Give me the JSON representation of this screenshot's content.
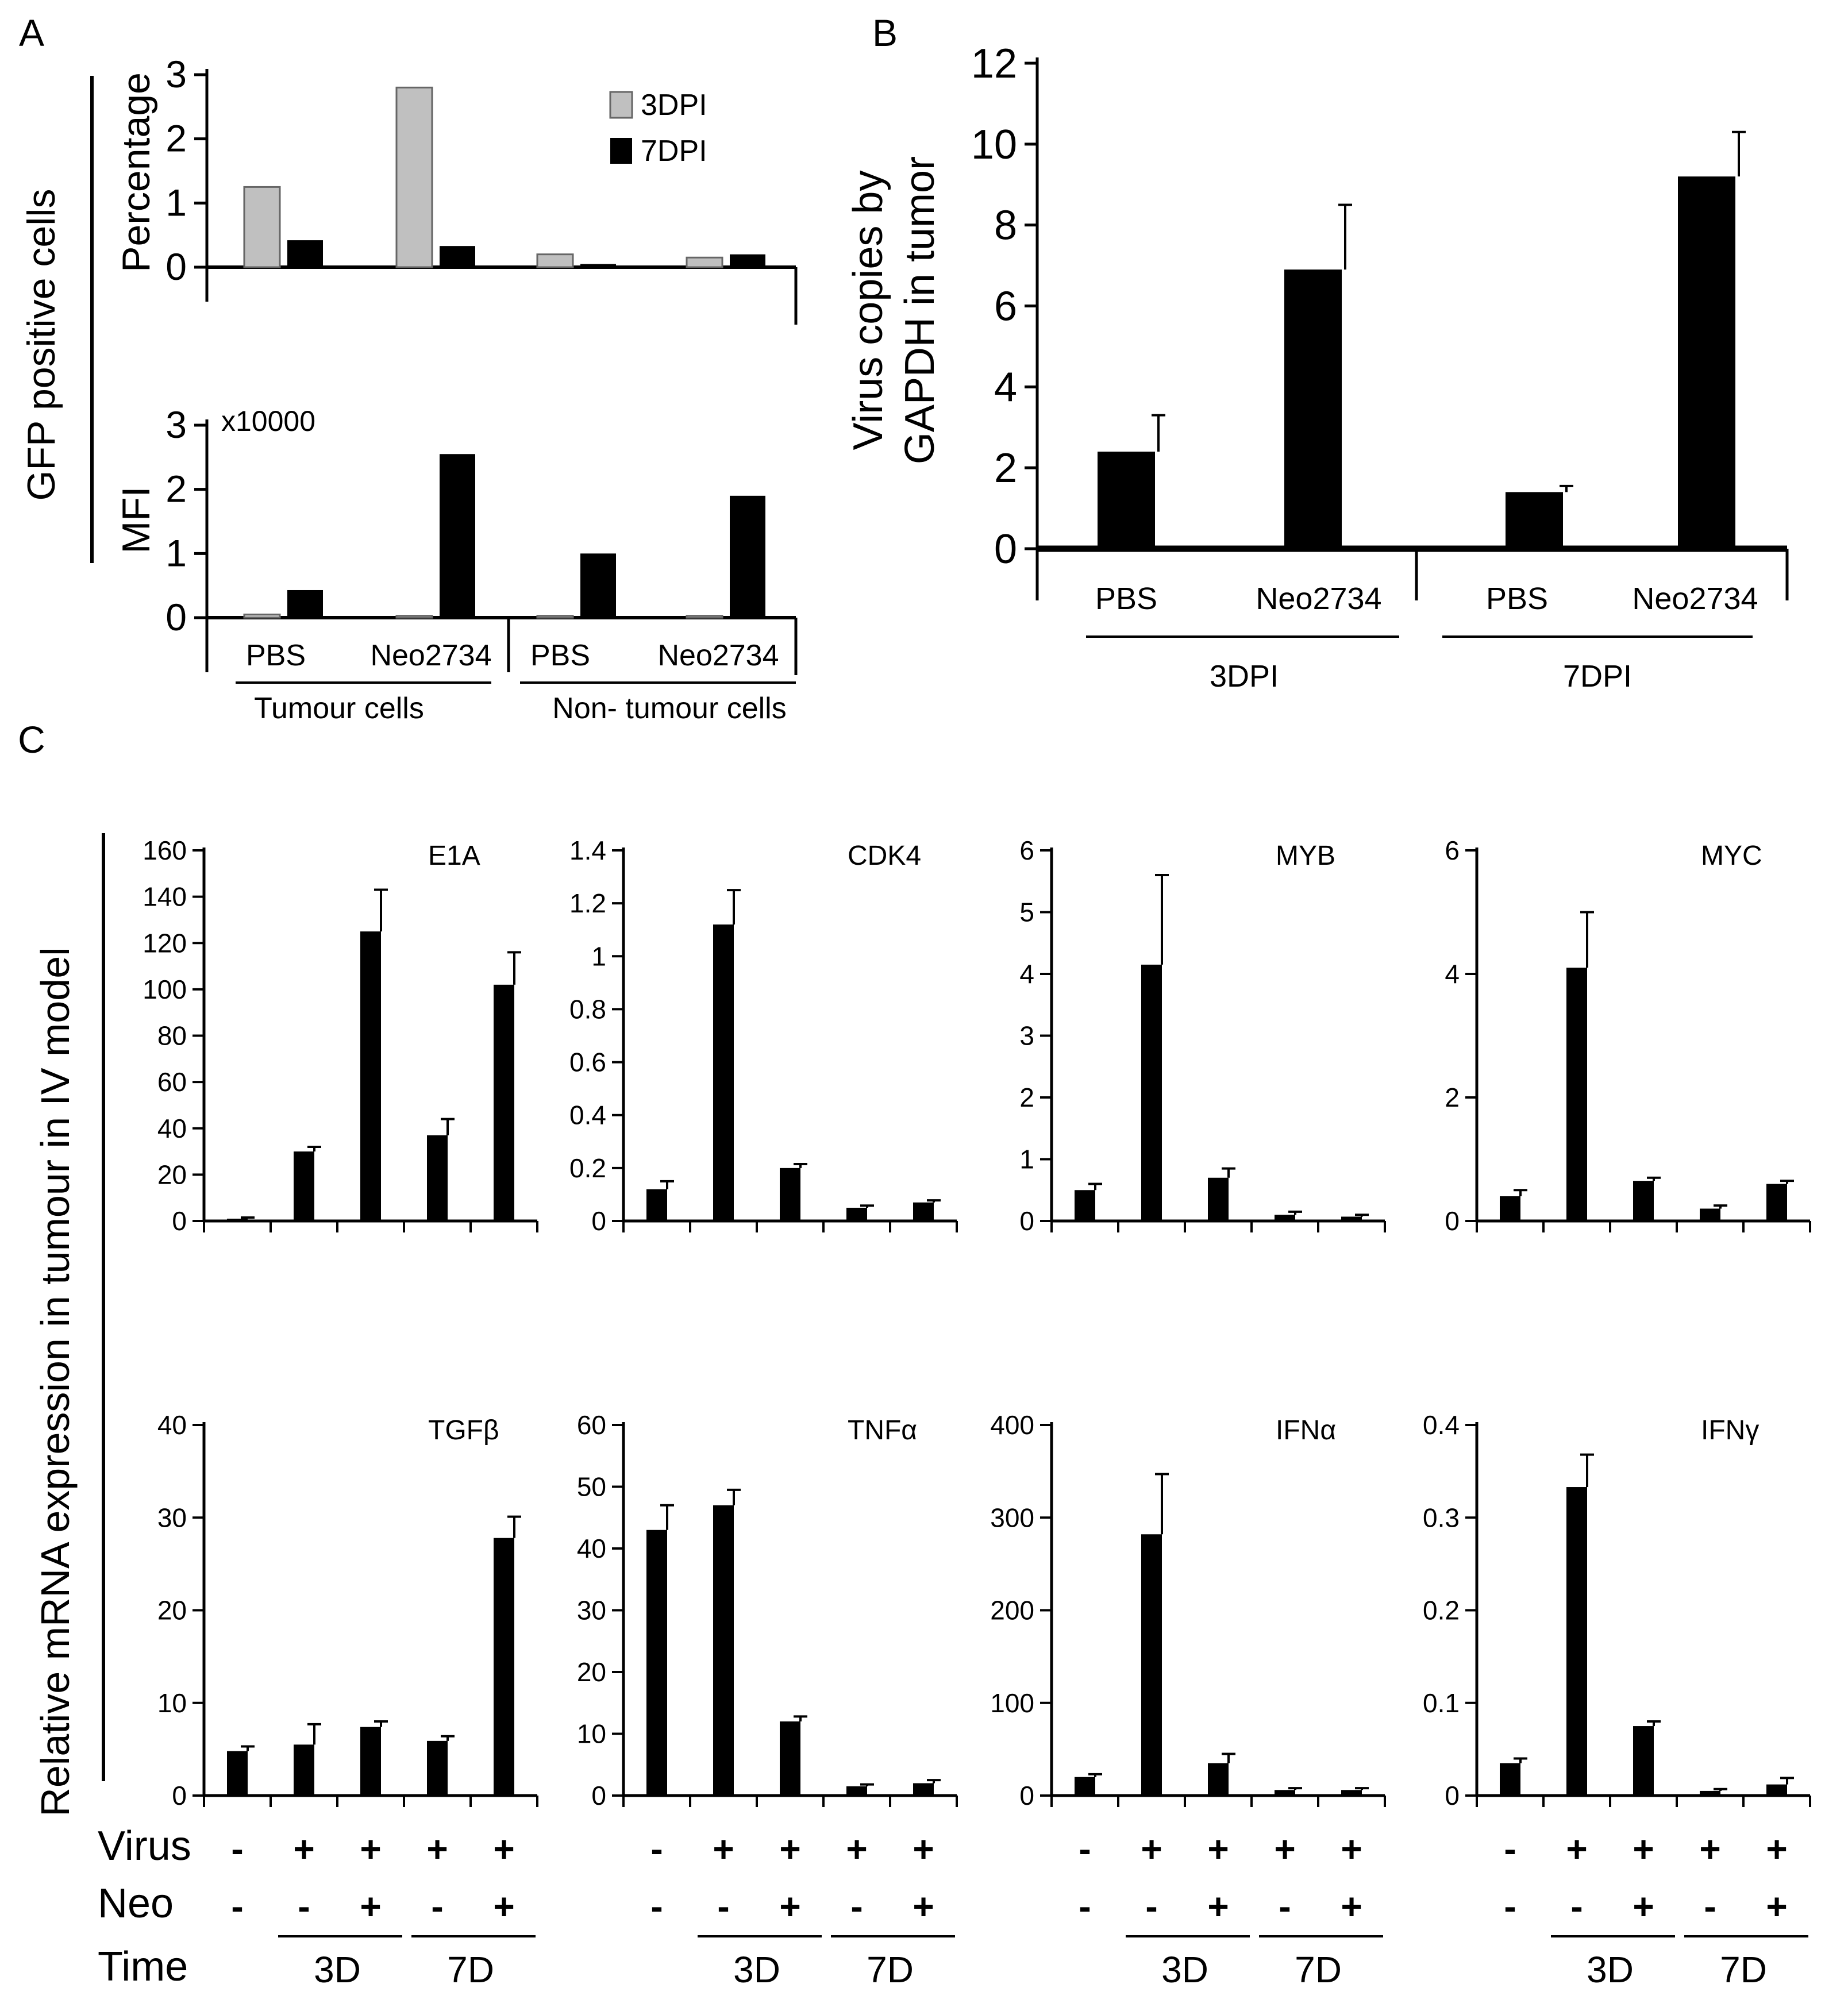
{
  "panels": {
    "A": {
      "letter": "A",
      "outer_ylabel": "GFP positive cells",
      "top": {
        "ylabel": "Percentage",
        "ylim": [
          0,
          3
        ],
        "ticks": [
          "0",
          "1",
          "2",
          "3"
        ]
      },
      "bottom": {
        "ylabel": "MFI",
        "multiplier": "x10000",
        "ylim": [
          0,
          3
        ],
        "ticks": [
          "0",
          "1",
          "2",
          "3"
        ]
      },
      "categories": [
        "PBS",
        "Neo2734",
        "PBS",
        "Neo2734"
      ],
      "groups": [
        "Tumour cells",
        "Non- tumour cells"
      ],
      "legend": [
        "3DPI",
        "7DPI"
      ]
    },
    "B": {
      "letter": "B",
      "ylabel_lines": [
        "Virus copies by",
        "GAPDH in tumor"
      ],
      "ylim": [
        0,
        12
      ],
      "ticks": [
        "0",
        "2",
        "4",
        "6",
        "8",
        "10",
        "12"
      ],
      "categories": [
        "PBS",
        "Neo2734",
        "PBS",
        "Neo2734"
      ],
      "groups": [
        "3DPI",
        "7DPI"
      ]
    },
    "C": {
      "letter": "C",
      "ylabel": "Relative mRNA expression in tumour in IV model",
      "row_labels": [
        "Virus",
        "Neo",
        "Time"
      ],
      "virus_signs": [
        "-",
        "+",
        "+",
        "+",
        "+"
      ],
      "neo_signs": [
        "-",
        "-",
        "+",
        "-",
        "+"
      ],
      "time_labels": [
        "3D",
        "7D"
      ]
    }
  },
  "chart_data": [
    {
      "panel": "A-top",
      "type": "bar",
      "ylabel": "Percentage",
      "ylim": [
        0,
        3
      ],
      "categories": [
        "PBS",
        "Neo2734",
        "PBS",
        "Neo2734"
      ],
      "series": [
        {
          "name": "3DPI",
          "values": [
            1.25,
            2.8,
            0.2,
            0.15
          ],
          "color": "#c0c0c0"
        },
        {
          "name": "7DPI",
          "values": [
            0.42,
            0.33,
            0.05,
            0.2
          ],
          "color": "#000000"
        }
      ]
    },
    {
      "panel": "A-bottom",
      "type": "bar",
      "ylabel": "MFI",
      "ylim": [
        0,
        3
      ],
      "categories": [
        "PBS",
        "Neo2734",
        "PBS",
        "Neo2734"
      ],
      "series": [
        {
          "name": "3DPI",
          "values": [
            0.05,
            0.03,
            0.03,
            0.03
          ],
          "color": "#c0c0c0"
        },
        {
          "name": "7DPI",
          "values": [
            0.43,
            2.55,
            1.0,
            1.9
          ],
          "color": "#000000"
        }
      ]
    },
    {
      "panel": "B",
      "type": "bar",
      "ylim": [
        0,
        12
      ],
      "categories": [
        "PBS",
        "Neo2734",
        "PBS",
        "Neo2734"
      ],
      "values": [
        2.4,
        6.9,
        1.4,
        9.2
      ],
      "errors": [
        0.9,
        1.6,
        0.15,
        1.1
      ]
    },
    {
      "panel": "C",
      "type": "bar",
      "title": "E1A",
      "ylim": [
        0,
        160
      ],
      "ticks": [
        "0",
        "20",
        "40",
        "60",
        "80",
        "100",
        "120",
        "140",
        "160"
      ],
      "values": [
        1,
        30,
        125,
        37,
        102
      ],
      "errors": [
        0.5,
        2,
        18,
        7,
        14
      ]
    },
    {
      "panel": "C",
      "type": "bar",
      "title": "CDK4",
      "ylim": [
        0,
        1.4
      ],
      "ticks": [
        "0",
        "0.2",
        "0.4",
        "0.6",
        "0.8",
        "1",
        "1.2",
        "1.4"
      ],
      "values": [
        0.12,
        1.12,
        0.2,
        0.05,
        0.07
      ],
      "errors": [
        0.03,
        0.13,
        0.015,
        0.008,
        0.008
      ]
    },
    {
      "panel": "C",
      "type": "bar",
      "title": "MYB",
      "ylim": [
        0,
        6
      ],
      "ticks": [
        "0",
        "1",
        "2",
        "3",
        "4",
        "5",
        "6"
      ],
      "values": [
        0.5,
        4.15,
        0.7,
        0.1,
        0.07
      ],
      "errors": [
        0.1,
        1.45,
        0.15,
        0.05,
        0.03
      ]
    },
    {
      "panel": "C",
      "type": "bar",
      "title": "MYC",
      "ylim": [
        0,
        6
      ],
      "ticks": [
        "0",
        "2",
        "4",
        "6"
      ],
      "values": [
        0.4,
        4.1,
        0.65,
        0.2,
        0.6
      ],
      "errors": [
        0.1,
        0.9,
        0.05,
        0.05,
        0.05
      ]
    },
    {
      "panel": "C",
      "type": "bar",
      "title": "TGFβ",
      "ylim": [
        0,
        40
      ],
      "ticks": [
        "0",
        "10",
        "20",
        "30",
        "40"
      ],
      "values": [
        4.8,
        5.5,
        7.4,
        5.9,
        27.8
      ],
      "errors": [
        0.5,
        2.2,
        0.6,
        0.5,
        2.3
      ]
    },
    {
      "panel": "C",
      "type": "bar",
      "title": "TNFα",
      "ylim": [
        0,
        60
      ],
      "ticks": [
        "0",
        "10",
        "20",
        "30",
        "40",
        "50",
        "60"
      ],
      "values": [
        43,
        47,
        12,
        1.5,
        2
      ],
      "errors": [
        4,
        2.5,
        0.8,
        0.3,
        0.5
      ]
    },
    {
      "panel": "C",
      "type": "bar",
      "title": "IFNα",
      "ylim": [
        0,
        400
      ],
      "ticks": [
        "0",
        "100",
        "200",
        "300",
        "400"
      ],
      "values": [
        20,
        282,
        35,
        6,
        6
      ],
      "errors": [
        3,
        65,
        10,
        2,
        2
      ]
    },
    {
      "panel": "C",
      "type": "bar",
      "title": "IFNγ",
      "ylim": [
        0,
        0.4
      ],
      "ticks": [
        "0",
        "0.1",
        "0.2",
        "0.3",
        "0.4"
      ],
      "values": [
        0.035,
        0.333,
        0.075,
        0.005,
        0.012
      ],
      "errors": [
        0.005,
        0.035,
        0.005,
        0.002,
        0.007
      ]
    }
  ]
}
